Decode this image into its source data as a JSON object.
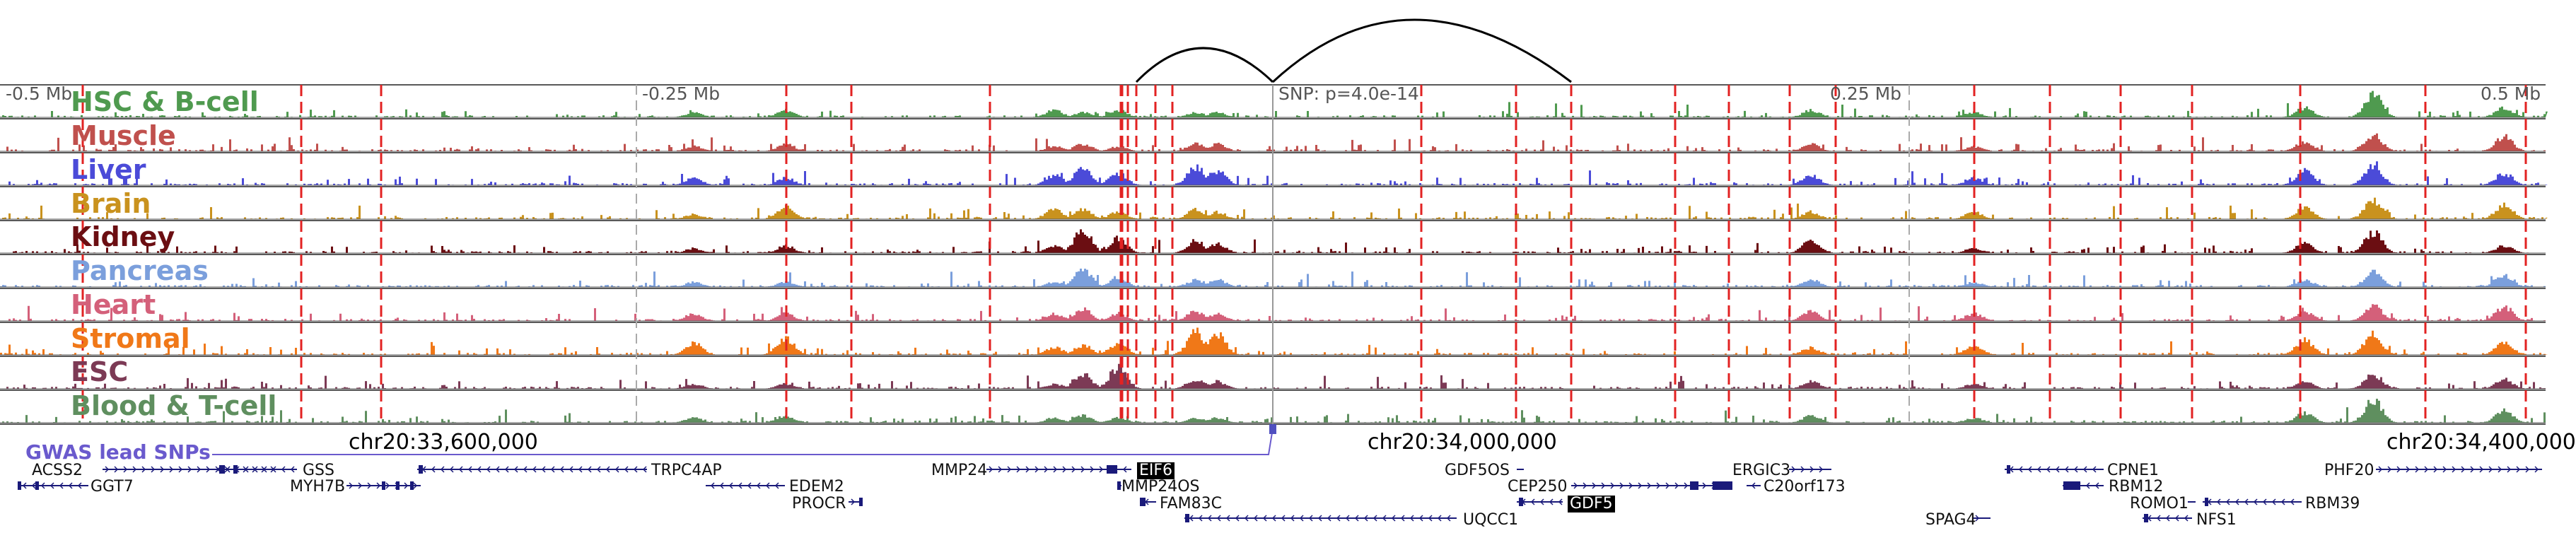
{
  "locus": {
    "chrom": "chr20",
    "coords": [
      "chr20:33,600,000",
      "chr20:34,000,000",
      "chr20:34,400,000"
    ],
    "scale_labels": [
      "-0.5 Mb",
      "-0.25 Mb",
      "0.25 Mb",
      "0.5 Mb"
    ],
    "snp_label": "SNP: p=4.0e-14",
    "gwas_label": "GWAS lead SNPs"
  },
  "tracks": [
    {
      "name": "HSC & B-cell",
      "color": "#4f9a4f"
    },
    {
      "name": "Muscle",
      "color": "#c0504d"
    },
    {
      "name": "Liver",
      "color": "#4b4bd8"
    },
    {
      "name": "Brain",
      "color": "#c9921e"
    },
    {
      "name": "Kidney",
      "color": "#6b0e12"
    },
    {
      "name": "Pancreas",
      "color": "#7b9fdc"
    },
    {
      "name": "Heart",
      "color": "#d4607a"
    },
    {
      "name": "Stromal",
      "color": "#f07818"
    },
    {
      "name": "ESC",
      "color": "#7c3a55"
    },
    {
      "name": "Blood & T-cell",
      "color": "#5f8f5f"
    }
  ],
  "genes": [
    {
      "name": "ACSS2",
      "strand": "+"
    },
    {
      "name": "GSS",
      "strand": "-"
    },
    {
      "name": "TRPC4AP",
      "strand": "-"
    },
    {
      "name": "MMP24",
      "strand": "+"
    },
    {
      "name": "EIF6",
      "strand": "-",
      "highlight": true
    },
    {
      "name": "GDF5OS",
      "strand": "+"
    },
    {
      "name": "ERGIC3",
      "strand": "+"
    },
    {
      "name": "CPNE1",
      "strand": "-"
    },
    {
      "name": "PHF20",
      "strand": "+"
    },
    {
      "name": "GGT7",
      "strand": "-"
    },
    {
      "name": "MYH7B",
      "strand": "+"
    },
    {
      "name": "EDEM2",
      "strand": "-"
    },
    {
      "name": "MMP24OS",
      "strand": "-"
    },
    {
      "name": "CEP250",
      "strand": "+"
    },
    {
      "name": "C20orf173",
      "strand": "-"
    },
    {
      "name": "RBM12",
      "strand": "-"
    },
    {
      "name": "PROCR",
      "strand": "+"
    },
    {
      "name": "FAM83C",
      "strand": "-"
    },
    {
      "name": "GDF5",
      "strand": "-",
      "highlight": true
    },
    {
      "name": "ROMO1",
      "strand": "+"
    },
    {
      "name": "RBM39",
      "strand": "-"
    },
    {
      "name": "UQCC1",
      "strand": "-"
    },
    {
      "name": "SPAG4",
      "strand": "+"
    },
    {
      "name": "NFS1",
      "strand": "-"
    }
  ]
}
